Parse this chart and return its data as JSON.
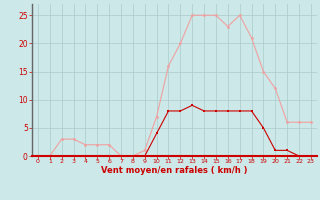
{
  "x": [
    0,
    1,
    2,
    3,
    4,
    5,
    6,
    7,
    8,
    9,
    10,
    11,
    12,
    13,
    14,
    15,
    16,
    17,
    18,
    19,
    20,
    21,
    22,
    23
  ],
  "rafales": [
    0,
    0,
    3,
    3,
    2,
    2,
    2,
    0,
    0,
    1,
    7,
    16,
    20,
    25,
    25,
    25,
    23,
    25,
    21,
    15,
    12,
    6,
    6,
    6
  ],
  "moyen": [
    0,
    0,
    0,
    0,
    0,
    0,
    0,
    0,
    0,
    0,
    4,
    8,
    8,
    9,
    8,
    8,
    8,
    8,
    8,
    5,
    1,
    1,
    0,
    0
  ],
  "bg_color": "#cce8e8",
  "grid_color": "#aacccc",
  "line_color_rafales": "#f0a0a0",
  "line_color_moyen": "#cc0000",
  "xlabel": "Vent moyen/en rafales ( km/h )",
  "ylim": [
    0,
    27
  ],
  "xlim": [
    -0.5,
    23.5
  ],
  "yticks": [
    0,
    5,
    10,
    15,
    20,
    25
  ],
  "xticks": [
    0,
    1,
    2,
    3,
    4,
    5,
    6,
    7,
    8,
    9,
    10,
    11,
    12,
    13,
    14,
    15,
    16,
    17,
    18,
    19,
    20,
    21,
    22,
    23
  ],
  "tick_color": "#cc0000",
  "label_color": "#cc0000",
  "spine_color_left": "#666666",
  "spine_color_bottom": "#cc0000"
}
